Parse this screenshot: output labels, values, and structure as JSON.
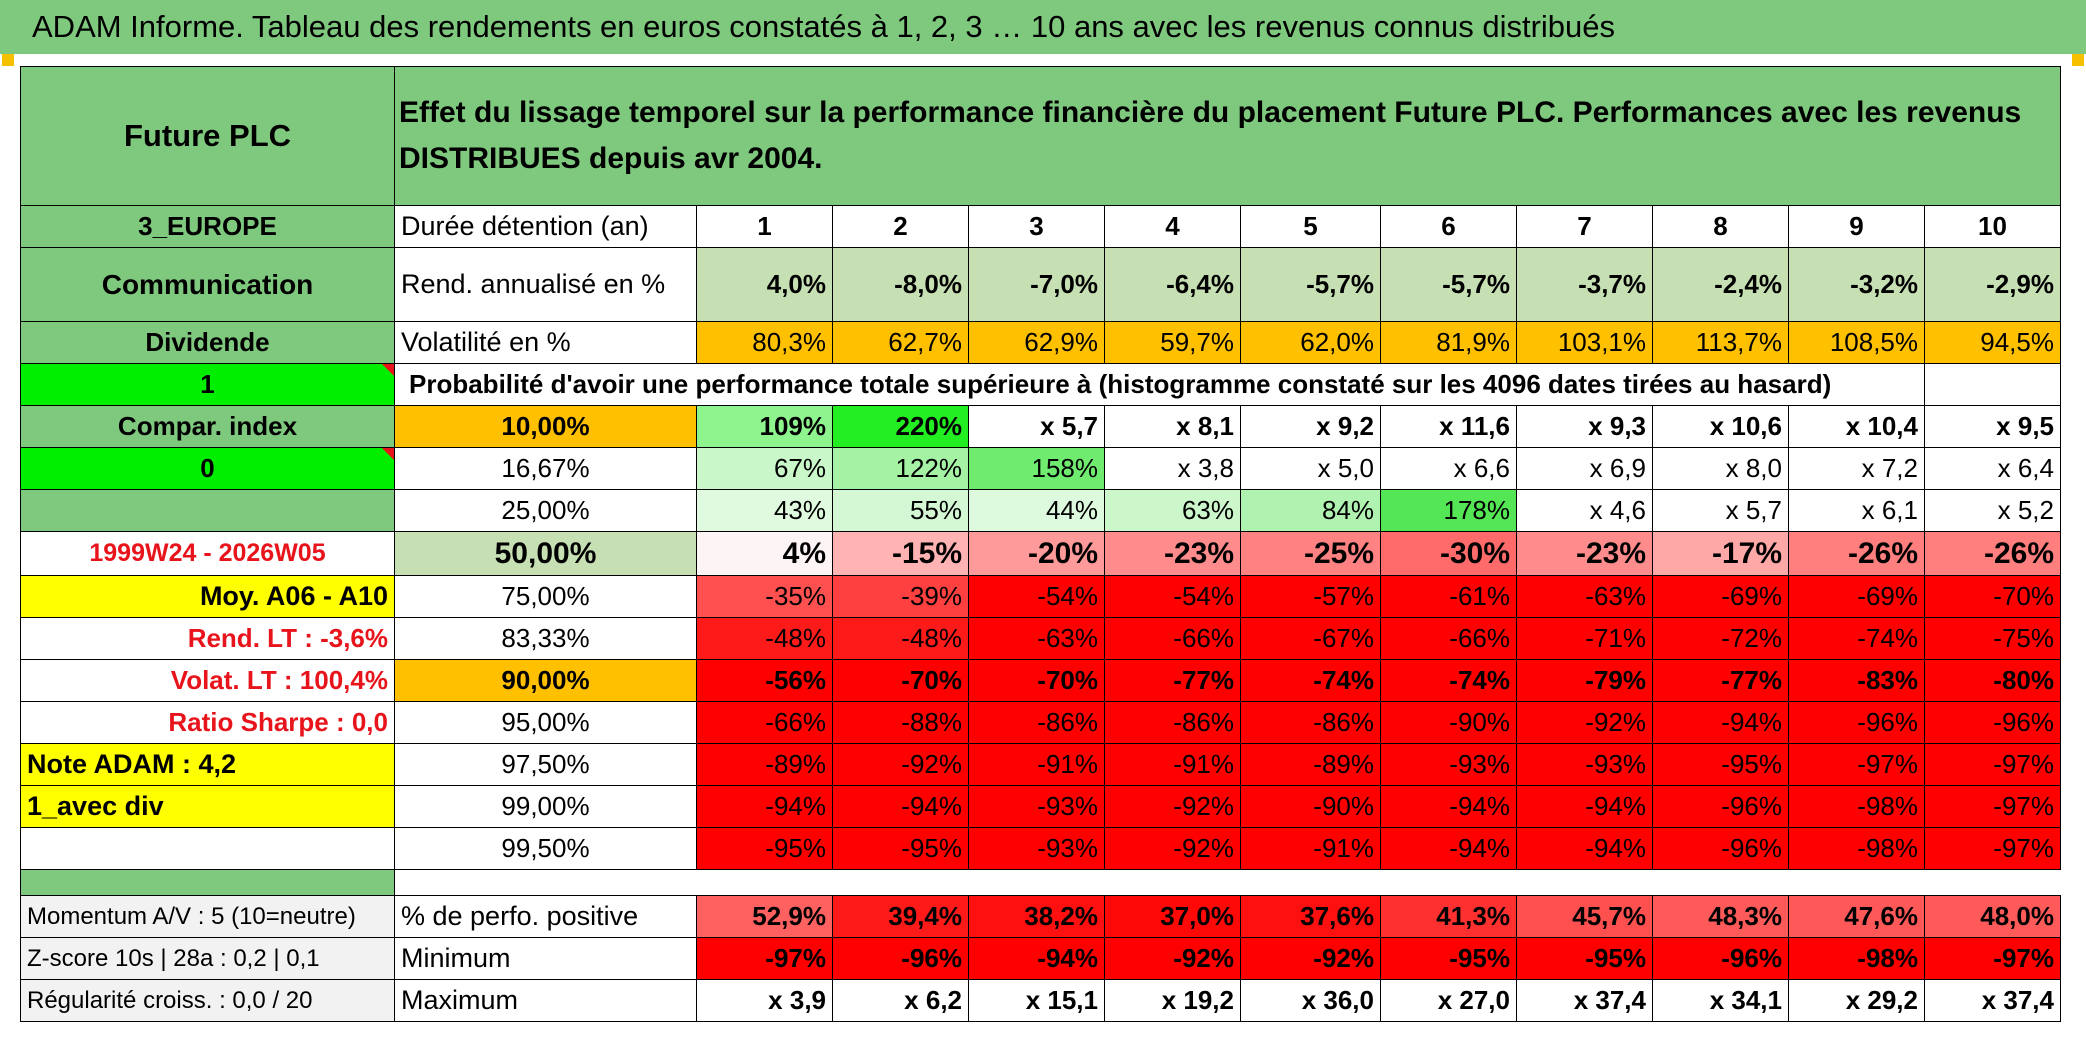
{
  "title": "ADAM Informe. Tableau des rendements en euros constatés à 1, 2, 3 … 10 ans avec les revenus connus distribués",
  "fund_name": "Future PLC",
  "header_text": "Effet du lissage temporel sur la performance financière du placement Future PLC. Performances avec les revenus DISTRIBUES depuis avr 2004.",
  "side": {
    "region": "3_EUROPE",
    "sector": "Communication",
    "dividend_label": "Dividende",
    "dividend_value": "1",
    "compar_label": "Compar. index",
    "compar_value": "0",
    "period": "1999W24 - 2026W05",
    "moy": "Moy. A06 - A10",
    "rend_lt": "Rend. LT :   -3,6%",
    "volat_lt": "Volat. LT :   100,4%",
    "sharpe": "Ratio Sharpe :    0,0",
    "note": "Note ADAM : 4,2",
    "div_mode": "1_avec div"
  },
  "duration_label": "Durée détention (an)",
  "years": [
    "1",
    "2",
    "3",
    "4",
    "5",
    "6",
    "7",
    "8",
    "9",
    "10"
  ],
  "rend_label": "Rend. annualisé en %",
  "rend": [
    "4,0%",
    "-8,0%",
    "-7,0%",
    "-6,4%",
    "-5,7%",
    "-5,7%",
    "-3,7%",
    "-2,4%",
    "-3,2%",
    "-2,9%"
  ],
  "vol_label": "Volatilité en %",
  "vol": [
    "80,3%",
    "62,7%",
    "62,9%",
    "59,7%",
    "62,0%",
    "81,9%",
    "103,1%",
    "113,7%",
    "108,5%",
    "94,5%"
  ],
  "prob_label": "Probabilité d'avoir une performance totale supérieure à (histogramme constaté sur les 4096 dates tirées au hasard)",
  "dist": [
    {
      "p": "10,00%",
      "v": [
        "109%",
        "220%",
        "x 5,7",
        "x 8,1",
        "x 9,2",
        "x 11,6",
        "x 9,3",
        "x 10,6",
        "x 10,4",
        "x 9,5"
      ],
      "bg": [
        "#8ef58e",
        "#22ee22",
        "#fff",
        "#fff",
        "#fff",
        "#fff",
        "#fff",
        "#fff",
        "#fff",
        "#fff"
      ]
    },
    {
      "p": "16,67%",
      "v": [
        "67%",
        "122%",
        "158%",
        "x 3,8",
        "x 5,0",
        "x 6,6",
        "x 6,9",
        "x 8,0",
        "x 7,2",
        "x 6,4"
      ],
      "bg": [
        "#c9f7c9",
        "#a5f2a5",
        "#6feb6f",
        "#fff",
        "#fff",
        "#fff",
        "#fff",
        "#fff",
        "#fff",
        "#fff"
      ]
    },
    {
      "p": "25,00%",
      "v": [
        "43%",
        "55%",
        "44%",
        "63%",
        "84%",
        "178%",
        "x 4,6",
        "x 5,7",
        "x 6,1",
        "x 5,2"
      ],
      "bg": [
        "#dffadf",
        "#d4f8d4",
        "#defade",
        "#cbf7cb",
        "#b0f2b0",
        "#55e655",
        "#fff",
        "#fff",
        "#fff",
        "#fff"
      ]
    },
    {
      "p": "50,00%",
      "v": [
        "4%",
        "-15%",
        "-20%",
        "-23%",
        "-25%",
        "-30%",
        "-23%",
        "-17%",
        "-26%",
        "-26%"
      ],
      "bg": [
        "#fdf5f5",
        "#ffb3b3",
        "#ff9a9a",
        "#ff8c8c",
        "#ff8282",
        "#ff6a6a",
        "#ff8c8c",
        "#ffa8a8",
        "#ff7f7f",
        "#ff7f7f"
      ]
    },
    {
      "p": "75,00%",
      "v": [
        "-35%",
        "-39%",
        "-54%",
        "-54%",
        "-57%",
        "-61%",
        "-63%",
        "-69%",
        "-69%",
        "-70%"
      ],
      "bg": [
        "#ff5050",
        "#ff4040",
        "#ff0000",
        "#ff0000",
        "#ff0000",
        "#ff0000",
        "#ff0000",
        "#ff0000",
        "#ff0000",
        "#ff0000"
      ]
    },
    {
      "p": "83,33%",
      "v": [
        "-48%",
        "-48%",
        "-63%",
        "-66%",
        "-67%",
        "-66%",
        "-71%",
        "-72%",
        "-74%",
        "-75%"
      ],
      "bg": [
        "#ff1a1a",
        "#ff1a1a",
        "#ff0000",
        "#ff0000",
        "#ff0000",
        "#ff0000",
        "#ff0000",
        "#ff0000",
        "#ff0000",
        "#ff0000"
      ]
    },
    {
      "p": "90,00%",
      "v": [
        "-56%",
        "-70%",
        "-70%",
        "-77%",
        "-74%",
        "-74%",
        "-79%",
        "-77%",
        "-83%",
        "-80%"
      ],
      "bg": [
        "#ff0000",
        "#ff0000",
        "#ff0000",
        "#ff0000",
        "#ff0000",
        "#ff0000",
        "#ff0000",
        "#ff0000",
        "#ff0000",
        "#ff0000"
      ]
    },
    {
      "p": "95,00%",
      "v": [
        "-66%",
        "-88%",
        "-86%",
        "-86%",
        "-86%",
        "-90%",
        "-92%",
        "-94%",
        "-96%",
        "-96%"
      ],
      "bg": [
        "#ff0000",
        "#ff0000",
        "#ff0000",
        "#ff0000",
        "#ff0000",
        "#ff0000",
        "#ff0000",
        "#ff0000",
        "#ff0000",
        "#ff0000"
      ]
    },
    {
      "p": "97,50%",
      "v": [
        "-89%",
        "-92%",
        "-91%",
        "-91%",
        "-89%",
        "-93%",
        "-93%",
        "-95%",
        "-97%",
        "-97%"
      ],
      "bg": [
        "#ff0000",
        "#ff0000",
        "#ff0000",
        "#ff0000",
        "#ff0000",
        "#ff0000",
        "#ff0000",
        "#ff0000",
        "#ff0000",
        "#ff0000"
      ]
    },
    {
      "p": "99,00%",
      "v": [
        "-94%",
        "-94%",
        "-93%",
        "-92%",
        "-90%",
        "-94%",
        "-94%",
        "-96%",
        "-98%",
        "-97%"
      ],
      "bg": [
        "#ff0000",
        "#ff0000",
        "#ff0000",
        "#ff0000",
        "#ff0000",
        "#ff0000",
        "#ff0000",
        "#ff0000",
        "#ff0000",
        "#ff0000"
      ]
    },
    {
      "p": "99,50%",
      "v": [
        "-95%",
        "-95%",
        "-93%",
        "-92%",
        "-91%",
        "-94%",
        "-94%",
        "-96%",
        "-98%",
        "-97%"
      ],
      "bg": [
        "#ff0000",
        "#ff0000",
        "#ff0000",
        "#ff0000",
        "#ff0000",
        "#ff0000",
        "#ff0000",
        "#ff0000",
        "#ff0000",
        "#ff0000"
      ]
    }
  ],
  "bottom": [
    {
      "side": "Momentum A/V : 5 (10=neutre)",
      "label": "% de perfo. positive",
      "v": [
        "52,9%",
        "39,4%",
        "38,2%",
        "37,0%",
        "37,6%",
        "41,3%",
        "45,7%",
        "48,3%",
        "47,6%",
        "48,0%"
      ],
      "bg": [
        "#ff6060",
        "#ff1a1a",
        "#ff1010",
        "#ff0808",
        "#ff1010",
        "#ff3030",
        "#ff5050",
        "#ff5a5a",
        "#ff5858",
        "#ff5a5a"
      ]
    },
    {
      "side": "Z-score 10s | 28a : 0,2 | 0,1",
      "label": "Minimum",
      "v": [
        "-97%",
        "-96%",
        "-94%",
        "-92%",
        "-92%",
        "-95%",
        "-95%",
        "-96%",
        "-98%",
        "-97%"
      ],
      "bg": [
        "#ff0000",
        "#ff0000",
        "#ff0000",
        "#ff0000",
        "#ff0000",
        "#ff0000",
        "#ff0000",
        "#ff0000",
        "#ff0000",
        "#ff0000"
      ]
    },
    {
      "side": "Régularité croiss. : 0,0 / 20",
      "label": "Maximum",
      "v": [
        "x 3,9",
        "x 6,2",
        "x 15,1",
        "x 19,2",
        "x 36,0",
        "x 27,0",
        "x 37,4",
        "x 34,1",
        "x 29,2",
        "x 37,4"
      ],
      "bg": [
        "#fff",
        "#fff",
        "#fff",
        "#fff",
        "#fff",
        "#fff",
        "#fff",
        "#fff",
        "#fff",
        "#fff"
      ]
    }
  ],
  "colors": {
    "green": "#7fc97f",
    "light_green": "#c6e0b4",
    "orange": "#ffc000",
    "yellow": "#ffff00",
    "red": "#ff0000",
    "text_red": "#e8141c"
  }
}
